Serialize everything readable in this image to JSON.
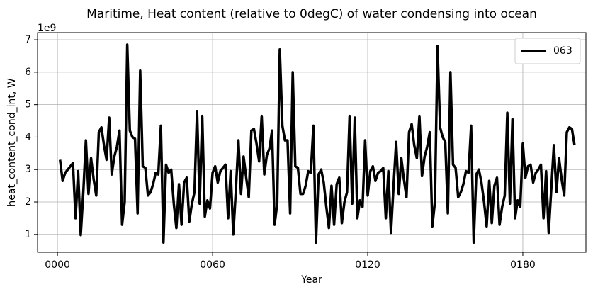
{
  "chart_data": {
    "type": "line",
    "title": "Maritime, Heat content (relative to 0degC) of water condensing into ocean",
    "x_label": "Year",
    "y_label": "heat_content_cond_int, W",
    "y_offset_label": "1e9",
    "x": [
      1,
      2,
      3,
      4,
      5,
      6,
      7,
      8,
      9,
      10,
      11,
      12,
      13,
      14,
      15,
      16,
      17,
      18,
      19,
      20,
      21,
      22,
      23,
      24,
      25,
      26,
      27,
      28,
      29,
      30,
      31,
      32,
      33,
      34,
      35,
      36,
      37,
      38,
      39,
      40,
      41,
      42,
      43,
      44,
      45,
      46,
      47,
      48,
      49,
      50,
      51,
      52,
      53,
      54,
      55,
      56,
      57,
      58,
      59,
      60,
      61,
      62,
      63,
      64,
      65,
      66,
      67,
      68,
      69,
      70,
      71,
      72,
      73,
      74,
      75,
      76,
      77,
      78,
      79,
      80,
      81,
      82,
      83,
      84,
      85,
      86,
      87,
      88,
      89,
      90,
      91,
      92,
      93,
      94,
      95,
      96,
      97,
      98,
      99,
      100,
      101,
      102,
      103,
      104,
      105,
      106,
      107,
      108,
      109,
      110,
      111,
      112,
      113,
      114,
      115,
      116,
      117,
      118,
      119,
      120,
      121,
      122,
      123,
      124,
      125,
      126,
      127,
      128,
      129,
      130,
      131,
      132,
      133,
      134,
      135,
      136,
      137,
      138,
      139,
      140,
      141,
      142,
      143,
      144,
      145,
      146,
      147,
      148,
      149,
      150,
      151,
      152,
      153,
      154,
      155,
      156,
      157,
      158,
      159,
      160,
      161,
      162,
      163,
      164,
      165,
      166,
      167,
      168,
      169,
      170,
      171,
      172,
      173,
      174,
      175,
      176,
      177,
      178,
      179,
      180,
      181,
      182,
      183,
      184,
      185,
      186,
      187,
      188,
      189,
      190,
      191,
      192,
      193,
      194,
      195,
      196,
      197,
      198,
      199,
      200
    ],
    "series": [
      {
        "name": "063",
        "color": "#000000",
        "values": [
          3.3,
          2.65,
          2.9,
          3.0,
          3.1,
          3.2,
          1.5,
          2.95,
          0.98,
          2.3,
          3.9,
          2.25,
          3.35,
          2.7,
          2.2,
          4.15,
          4.3,
          3.75,
          3.3,
          4.6,
          2.85,
          3.4,
          3.7,
          4.2,
          1.3,
          2.0,
          6.85,
          4.2,
          4.0,
          3.95,
          1.65,
          6.05,
          3.1,
          3.05,
          2.2,
          2.3,
          2.55,
          2.9,
          2.85,
          4.35,
          0.75,
          3.15,
          2.9,
          3.0,
          1.95,
          1.2,
          2.55,
          1.3,
          2.6,
          2.75,
          1.4,
          1.95,
          2.3,
          4.8,
          1.95,
          4.65,
          1.55,
          2.05,
          1.8,
          2.9,
          3.1,
          2.6,
          2.95,
          3.05,
          3.15,
          1.5,
          2.95,
          1.0,
          2.35,
          3.9,
          2.25,
          3.4,
          2.75,
          2.15,
          4.2,
          4.25,
          3.8,
          3.25,
          4.65,
          2.85,
          3.45,
          3.65,
          4.2,
          1.3,
          1.95,
          6.7,
          4.35,
          3.9,
          3.9,
          1.65,
          6.0,
          3.1,
          3.05,
          2.25,
          2.25,
          2.5,
          2.95,
          2.9,
          4.35,
          0.75,
          2.85,
          3.0,
          2.6,
          1.85,
          1.2,
          2.5,
          1.3,
          2.55,
          2.75,
          1.35,
          2.0,
          2.3,
          4.65,
          1.95,
          4.6,
          1.5,
          2.05,
          1.85,
          3.9,
          2.2,
          2.95,
          3.1,
          2.65,
          2.9,
          2.95,
          3.05,
          1.5,
          2.95,
          1.05,
          2.5,
          3.85,
          2.25,
          3.35,
          2.7,
          2.15,
          4.15,
          4.4,
          3.75,
          3.35,
          4.65,
          2.8,
          3.4,
          3.7,
          4.15,
          1.25,
          2.0,
          6.8,
          4.3,
          4.0,
          3.85,
          1.65,
          6.0,
          3.15,
          3.05,
          2.15,
          2.3,
          2.55,
          2.95,
          2.9,
          4.35,
          0.75,
          2.85,
          3.0,
          2.6,
          2.0,
          1.25,
          2.65,
          1.35,
          2.5,
          2.75,
          1.3,
          1.85,
          2.2,
          4.75,
          1.95,
          4.55,
          1.5,
          2.05,
          1.85,
          3.8,
          2.75,
          3.1,
          3.15,
          2.6,
          2.9,
          3.0,
          3.15,
          1.5,
          2.95,
          1.05,
          2.4,
          3.75,
          2.3,
          3.35,
          2.7,
          2.2,
          4.15,
          4.3,
          4.25,
          3.75
        ]
      }
    ],
    "xlim": [
      -7.7,
      204.4
    ],
    "ylim": [
      0.45,
      7.22
    ],
    "xticks": [
      {
        "value": 0,
        "label": "0000"
      },
      {
        "value": 60,
        "label": "0060"
      },
      {
        "value": 120,
        "label": "0120"
      },
      {
        "value": 180,
        "label": "0180"
      }
    ],
    "yticks": [
      1,
      2,
      3,
      4,
      5,
      6,
      7
    ],
    "grid": true,
    "legend": "upper right"
  }
}
